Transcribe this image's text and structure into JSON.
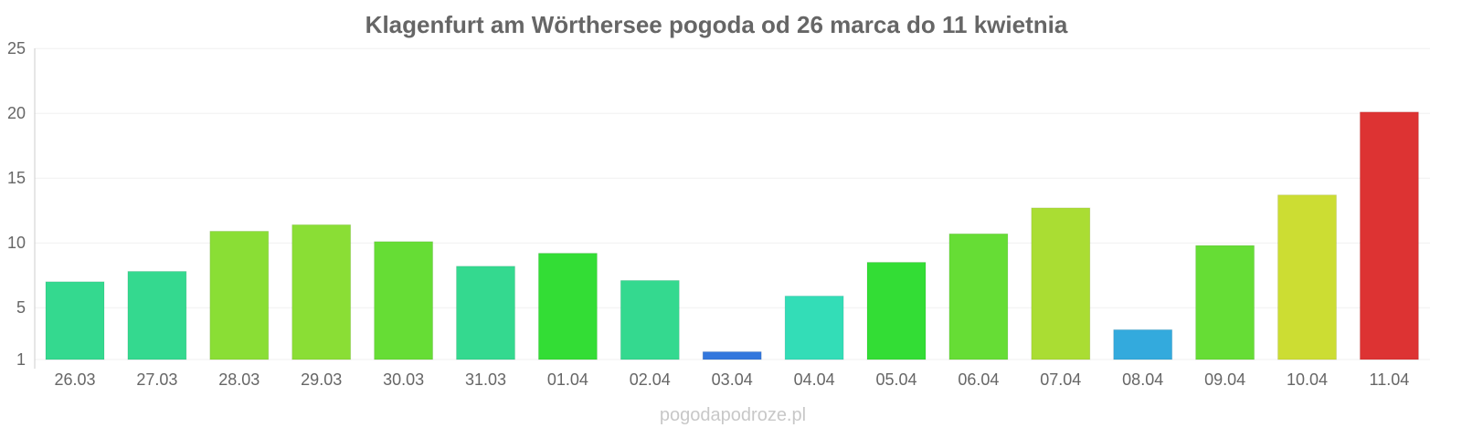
{
  "chart_data": {
    "type": "bar",
    "title": "Klagenfurt am Wörthersee pogoda od 26 marca do 11 kwietnia",
    "xlabel": "",
    "ylabel": "",
    "ylim": [
      1,
      25
    ],
    "yticks": [
      1,
      5,
      10,
      15,
      20,
      25
    ],
    "grid": true,
    "categories": [
      "26.03",
      "27.03",
      "28.03",
      "29.03",
      "30.03",
      "31.03",
      "01.04",
      "02.04",
      "03.04",
      "04.04",
      "05.04",
      "06.04",
      "07.04",
      "08.04",
      "09.04",
      "10.04",
      "11.04"
    ],
    "values": [
      7.0,
      7.8,
      10.9,
      11.4,
      10.1,
      8.2,
      9.2,
      7.1,
      1.6,
      5.9,
      8.5,
      10.7,
      12.7,
      3.3,
      9.8,
      13.7,
      20.1
    ],
    "colors": [
      "#34d98f",
      "#34d98f",
      "#8ade35",
      "#8ade35",
      "#66dd35",
      "#34d98f",
      "#33dd35",
      "#34d98f",
      "#3377dd",
      "#33ddb7",
      "#33dd35",
      "#66dd35",
      "#aadd33",
      "#33aadd",
      "#66dd35",
      "#ccdd33",
      "#dd3333"
    ]
  },
  "watermark": "pogodapodroze.pl"
}
